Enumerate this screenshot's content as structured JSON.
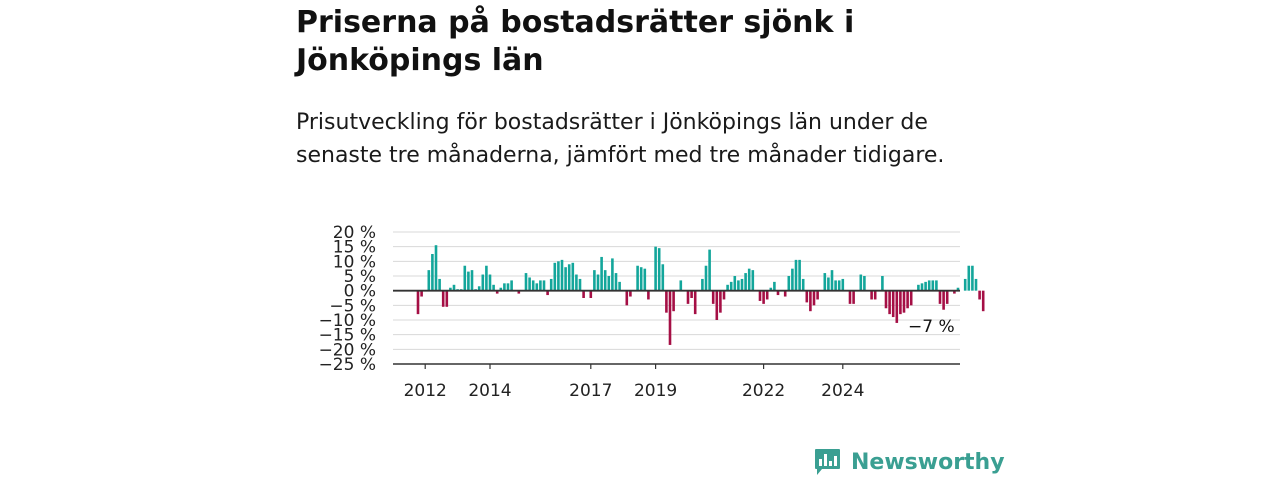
{
  "header": {
    "title": "Priserna på bostadsrätter sjönk i Jönköpings län",
    "subtitle": "Prisutveckling för bostadsrätter i Jönköpings län under de senaste tre månaderna, jämfört med tre månader tidigare."
  },
  "brand": {
    "name": "Newsworthy",
    "color": "#3a9f92",
    "icon": "newsworthy-logo-icon"
  },
  "colors": {
    "positive": "#13a69b",
    "negative": "#a50f45",
    "grid": "#d8d8d8",
    "axis": "#333333"
  },
  "chart_data": {
    "type": "bar",
    "title": "Priserna på bostadsrätter sjönk i Jönköpings län",
    "xlabel": "",
    "ylabel": "",
    "ylim": [
      -25,
      20
    ],
    "yticks": [
      20,
      15,
      10,
      5,
      0,
      -5,
      -10,
      -15,
      -20,
      -25
    ],
    "ytick_labels": [
      "20 %",
      "15 %",
      "10 %",
      "5 %",
      "0 %",
      "−5 %",
      "−10 %",
      "−15 %",
      "−20 %",
      "−25 %"
    ],
    "xticks": [
      "2012",
      "2014",
      "2017",
      "2019",
      "2022",
      "2024"
    ],
    "xtick_index": [
      2,
      20,
      48,
      66,
      96,
      118
    ],
    "grid": true,
    "annotation": "−7 %",
    "values": [
      -8,
      -2,
      0,
      7,
      12.5,
      15.5,
      4,
      -5.5,
      -5.5,
      1,
      2,
      0.5,
      0.5,
      8.5,
      6.5,
      7,
      0.5,
      1.5,
      5.5,
      8.5,
      5.5,
      2,
      -1,
      1,
      2.5,
      2.5,
      3.5,
      0,
      -1,
      0,
      6,
      4.5,
      3.5,
      2.5,
      3.5,
      3.5,
      -1.5,
      4,
      9.5,
      10,
      10.5,
      8,
      9,
      9.5,
      5.5,
      4,
      -2.5,
      0,
      -2.5,
      7,
      5.5,
      11.5,
      7,
      5,
      11,
      6,
      3,
      0,
      -5,
      -2,
      0,
      8.5,
      8,
      7.5,
      -3,
      0,
      15,
      14.5,
      9,
      -7.5,
      -18.5,
      -7,
      0,
      3.5,
      0,
      -4.5,
      -2.5,
      -8,
      0,
      4,
      8.5,
      14,
      -4.5,
      -10,
      -7.5,
      -3,
      2,
      3,
      5,
      3.5,
      4,
      6,
      7.5,
      7,
      0,
      -3.5,
      -4.5,
      -3,
      1,
      3,
      -1.5,
      0,
      -2,
      5,
      7.5,
      10.5,
      10.5,
      4,
      -4,
      -7,
      -5,
      -3,
      0,
      6,
      4.5,
      7,
      3.5,
      3.5,
      4,
      0,
      -4.5,
      -4.5,
      0,
      5.5,
      5,
      0,
      -3,
      -3,
      0,
      5,
      -6,
      -8,
      -9,
      -11,
      -8,
      -7.5,
      -6,
      -5,
      0,
      2,
      2.5,
      3,
      3.5,
      3.5,
      3.5,
      -4.5,
      -6.5,
      -4.5,
      0,
      -1,
      1,
      0,
      4,
      8.5,
      8.5,
      4,
      -3,
      -7
    ]
  }
}
